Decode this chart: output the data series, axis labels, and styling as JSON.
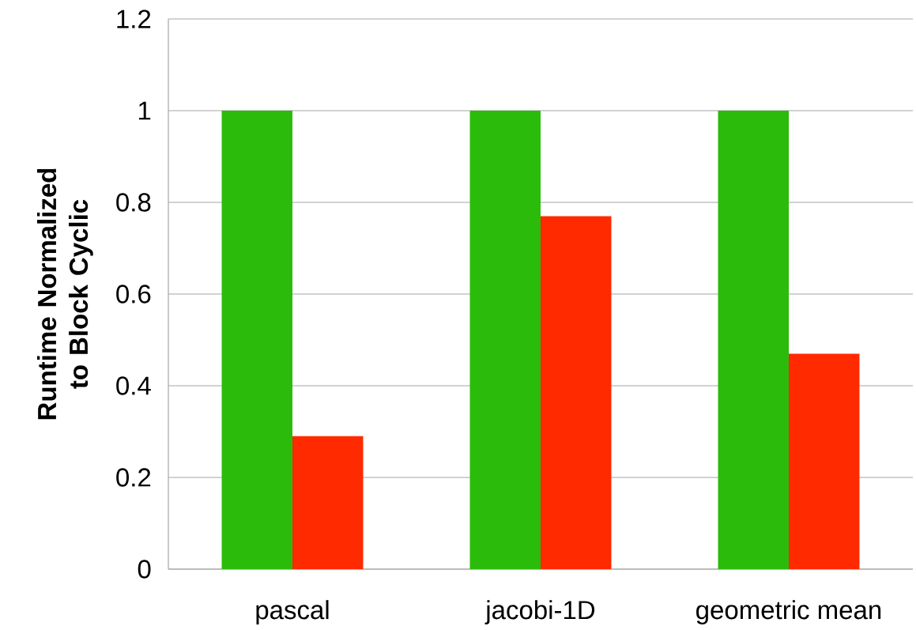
{
  "chart_data": {
    "type": "bar",
    "ylabel": "Runtime Normalized to Block Cyclic",
    "categories": [
      "pascal",
      "jacobi-1D",
      "geometric mean"
    ],
    "series": [
      {
        "color": "#2bbb0b",
        "values": [
          1,
          1,
          1
        ]
      },
      {
        "color": "#ff2a00",
        "values": [
          0.29,
          0.77,
          0.47
        ]
      }
    ],
    "ylim": [
      0,
      1.2
    ],
    "yticks": [
      0,
      0.2,
      0.4,
      0.6,
      0.8,
      1,
      1.2
    ],
    "grid": "y"
  }
}
